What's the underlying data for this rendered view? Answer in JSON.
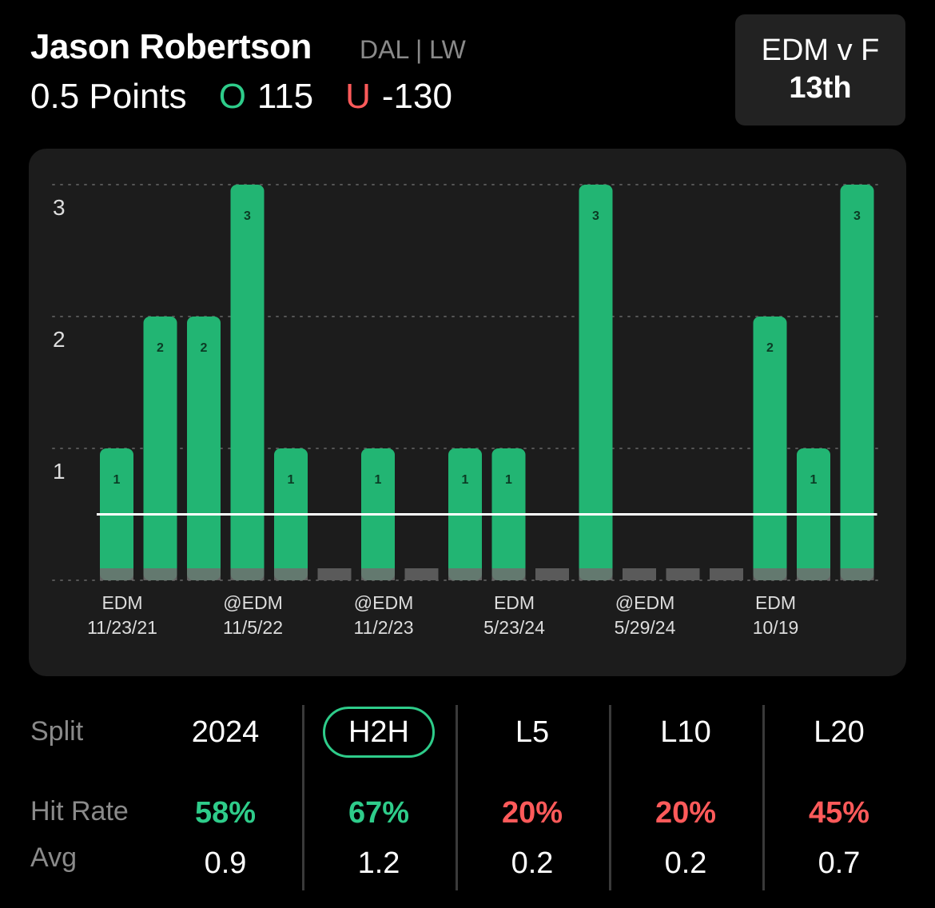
{
  "header": {
    "player_name": "Jason Robertson",
    "team_position": "DAL | LW",
    "line": "0.5 Points",
    "over_mark": "O",
    "over_odds": "115",
    "under_mark": "U",
    "under_odds": "-130"
  },
  "matchup": {
    "line1": "EDM v F",
    "line2": "13th"
  },
  "chart_data": {
    "type": "bar",
    "values": [
      1,
      2,
      2,
      3,
      1,
      0,
      1,
      0,
      1,
      1,
      0,
      3,
      0,
      0,
      0,
      2,
      1,
      3
    ],
    "x_labels": [
      {
        "index": 0,
        "opponent": "EDM",
        "date": "11/23/21"
      },
      {
        "index": 3,
        "opponent": "@EDM",
        "date": "11/5/22"
      },
      {
        "index": 6,
        "opponent": "@EDM",
        "date": "11/2/23"
      },
      {
        "index": 9,
        "opponent": "EDM",
        "date": "5/23/24"
      },
      {
        "index": 12,
        "opponent": "@EDM",
        "date": "5/29/24"
      },
      {
        "index": 15,
        "opponent": "EDM",
        "date": "10/19"
      }
    ],
    "y_ticks": [
      1,
      2,
      3
    ],
    "ylim": [
      0,
      3
    ],
    "line_value": 0.5,
    "grid": true,
    "colors": {
      "hit": "#22b573",
      "miss": "#5a5a5a",
      "line": "#ffffff"
    }
  },
  "stats": {
    "labels": {
      "split": "Split",
      "hit_rate": "Hit Rate",
      "avg": "Avg"
    },
    "columns": [
      {
        "split": "2024",
        "hit_rate": "58%",
        "avg": "0.9",
        "tone": "green",
        "active": false
      },
      {
        "split": "H2H",
        "hit_rate": "67%",
        "avg": "1.2",
        "tone": "green",
        "active": true
      },
      {
        "split": "L5",
        "hit_rate": "20%",
        "avg": "0.2",
        "tone": "red",
        "active": false
      },
      {
        "split": "L10",
        "hit_rate": "20%",
        "avg": "0.2",
        "tone": "red",
        "active": false
      },
      {
        "split": "L20",
        "hit_rate": "45%",
        "avg": "0.7",
        "tone": "red",
        "active": false
      }
    ]
  }
}
